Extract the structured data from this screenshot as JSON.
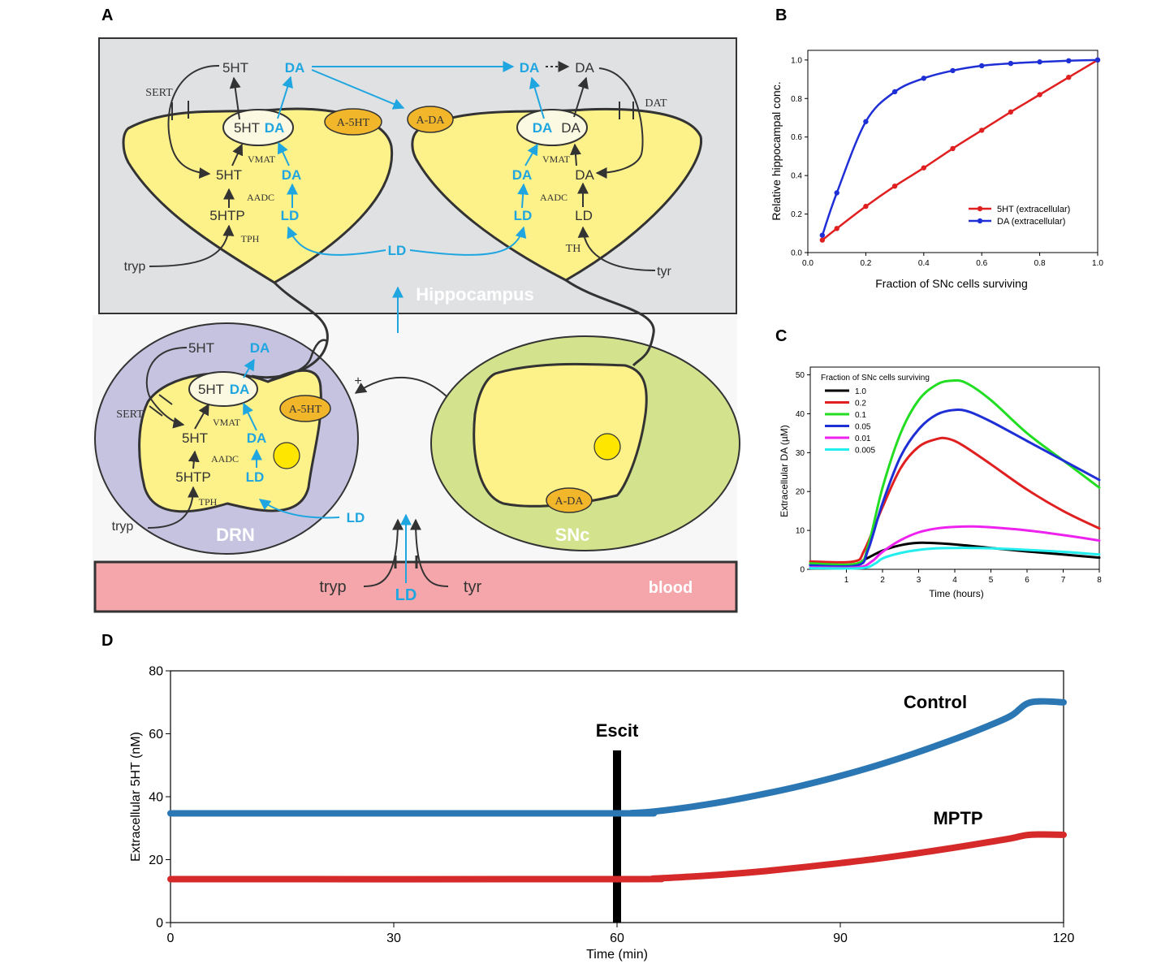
{
  "panels": {
    "a": {
      "letter": "A",
      "regions": {
        "hippocampus": "Hippocampus",
        "drn": "DRN",
        "snc": "SNc",
        "blood": "blood"
      },
      "hippo_left": {
        "top_5ht": "5HT",
        "top_da": "DA",
        "ves_5ht": "5HT",
        "ves_da": "DA",
        "vmat": "VMAT",
        "mid_5ht": "5HT",
        "mid_da": "DA",
        "aadc": "AADC",
        "htp": "5HTP",
        "ld": "LD",
        "tph": "TPH",
        "sert": "SERT",
        "a5ht": "A-5HT",
        "tryp": "tryp"
      },
      "hippo_right": {
        "top_da_blue": "DA",
        "top_da": "DA",
        "ves_da_blue": "DA",
        "ves_da": "DA",
        "vmat": "VMAT",
        "mid_da_blue": "DA",
        "mid_da": "DA",
        "aadc": "AADC",
        "ld_blue": "LD",
        "ld": "LD",
        "th": "TH",
        "dat": "DAT",
        "ada": "A-DA",
        "tyr": "tyr"
      },
      "hippo_ld": "LD",
      "drn": {
        "top_5ht": "5HT",
        "top_da": "DA",
        "ves_5ht": "5HT",
        "ves_da": "DA",
        "vmat": "VMAT",
        "mid_5ht": "5HT",
        "mid_da": "DA",
        "aadc": "AADC",
        "htp": "5HTP",
        "ld": "LD",
        "tph": "TPH",
        "sert": "SERT",
        "a5ht": "A-5HT",
        "tryp": "tryp",
        "ld_in": "LD",
        "plus": "+"
      },
      "snc": {
        "ada": "A-DA"
      },
      "blood": {
        "tryp": "tryp",
        "ld": "LD",
        "tyr": "tyr"
      }
    },
    "b": {
      "letter": "B"
    },
    "c": {
      "letter": "C"
    },
    "d": {
      "letter": "D"
    }
  },
  "colors": {
    "blue": "#1fa6e0",
    "dark": "#333333",
    "cell": "#fdf18a",
    "hippo_bg": "#e0e1e3",
    "drn_bg": "#c5c3e0",
    "snc_bg": "#d3e28d",
    "blood_bg": "#f4a6aa",
    "nucleus": "#ffe600",
    "enzyme": "#f2b62b",
    "red": "#e02020",
    "navy": "#1f2fd6",
    "green": "#22dd22",
    "magenta": "#ee22ee",
    "cyan": "#22eeee",
    "black": "#000000",
    "d_blue": "#2a77b4",
    "d_red": "#d62a2a"
  },
  "chart_data": [
    {
      "id": "B",
      "type": "line",
      "xlabel": "Fraction of SNc cells surviving",
      "ylabel": "Relative hippocampal conc.",
      "xlim": [
        0,
        1
      ],
      "ylim": [
        0,
        1.05
      ],
      "xticks": [
        "0.0",
        "0.2",
        "0.4",
        "0.6",
        "0.8",
        "1.0"
      ],
      "yticks": [
        "0.0",
        "0.2",
        "0.4",
        "0.6",
        "0.8",
        "1.0"
      ],
      "legend_position": "lower-right",
      "series": [
        {
          "name": "5HT (extracellular)",
          "color": "#e02020",
          "markers": true,
          "x": [
            0.05,
            0.1,
            0.2,
            0.3,
            0.4,
            0.5,
            0.6,
            0.7,
            0.8,
            0.9,
            1.0
          ],
          "y": [
            0.065,
            0.125,
            0.24,
            0.345,
            0.44,
            0.54,
            0.635,
            0.73,
            0.82,
            0.91,
            1.0
          ]
        },
        {
          "name": "DA (extracellular)",
          "color": "#1f2fd6",
          "markers": true,
          "x": [
            0.05,
            0.1,
            0.2,
            0.3,
            0.4,
            0.5,
            0.6,
            0.7,
            0.8,
            0.9,
            1.0
          ],
          "y": [
            0.09,
            0.31,
            0.68,
            0.835,
            0.905,
            0.945,
            0.97,
            0.982,
            0.99,
            0.996,
            1.0
          ]
        }
      ]
    },
    {
      "id": "C",
      "type": "line",
      "xlabel": "Time (hours)",
      "ylabel": "Extracellular DA (µM)",
      "xlim": [
        0,
        8
      ],
      "ylim": [
        0,
        52
      ],
      "xticks": [
        "1",
        "2",
        "3",
        "4",
        "5",
        "6",
        "7",
        "8"
      ],
      "yticks": [
        "0",
        "10",
        "20",
        "30",
        "40",
        "50"
      ],
      "legend_title": "Fraction of SNc cells surviving",
      "legend_position": "top-left",
      "series": [
        {
          "name": "1.0",
          "color": "#000000",
          "x": [
            0,
            1.2,
            1.5,
            2,
            2.5,
            3,
            3.5,
            4,
            5,
            6,
            7,
            8
          ],
          "y": [
            1.2,
            1.2,
            2.5,
            4.8,
            6.2,
            6.8,
            6.7,
            6.4,
            5.5,
            4.6,
            3.8,
            3.0
          ]
        },
        {
          "name": "0.2",
          "color": "#e02020",
          "x": [
            0,
            1.2,
            1.5,
            2,
            2.5,
            3,
            3.5,
            3.8,
            4.2,
            5,
            6,
            7,
            8
          ],
          "y": [
            2.0,
            2.0,
            5,
            16,
            26,
            31.5,
            33.5,
            33.6,
            32,
            27,
            20.5,
            15,
            10.5
          ]
        },
        {
          "name": "0.1",
          "color": "#22dd22",
          "x": [
            0,
            1.3,
            1.6,
            2,
            2.5,
            3,
            3.5,
            3.9,
            4.3,
            5,
            6,
            7,
            8
          ],
          "y": [
            1.5,
            1.5,
            6,
            21,
            35,
            43.5,
            47.5,
            48.5,
            48,
            43.5,
            35,
            28,
            21
          ]
        },
        {
          "name": "0.05",
          "color": "#1f2fd6",
          "x": [
            0,
            1.3,
            1.6,
            2,
            2.5,
            3,
            3.5,
            4,
            4.4,
            5,
            6,
            7,
            8
          ],
          "y": [
            1.0,
            1.0,
            5,
            17,
            29,
            36,
            39.8,
            41,
            40.5,
            38,
            33,
            28,
            23
          ]
        },
        {
          "name": "0.01",
          "color": "#ee22ee",
          "x": [
            0,
            1.3,
            1.7,
            2,
            2.5,
            3,
            3.5,
            4,
            4.5,
            5,
            6,
            7,
            8
          ],
          "y": [
            0.5,
            0.5,
            2,
            4.5,
            7.5,
            9.5,
            10.5,
            10.9,
            11,
            10.8,
            10,
            8.8,
            7.4
          ]
        },
        {
          "name": "0.005",
          "color": "#22eeee",
          "x": [
            0,
            1.4,
            1.8,
            2,
            2.5,
            3,
            3.5,
            4,
            4.5,
            5,
            6,
            7,
            8
          ],
          "y": [
            0.3,
            0.3,
            1.5,
            2.8,
            4.2,
            5.0,
            5.4,
            5.5,
            5.5,
            5.4,
            5.0,
            4.5,
            3.8
          ]
        }
      ]
    },
    {
      "id": "D",
      "type": "line",
      "xlabel": "Time (min)",
      "ylabel": "Extracellular 5HT (nM)",
      "xlim": [
        0,
        120
      ],
      "ylim": [
        0,
        80
      ],
      "xticks": [
        "0",
        "30",
        "60",
        "90",
        "120"
      ],
      "yticks": [
        "0",
        "20",
        "40",
        "60",
        "80"
      ],
      "annotations": [
        {
          "text": "Escit",
          "x": 60
        },
        {
          "text": "Control"
        },
        {
          "text": "MPTP"
        }
      ],
      "marker_x": 60,
      "series": [
        {
          "name": "Control",
          "color": "#2a77b4",
          "x": [
            0,
            60,
            62,
            65,
            70,
            75,
            80,
            85,
            90,
            95,
            100,
            105,
            110,
            113,
            115,
            117,
            120
          ],
          "y": [
            34.7,
            34.7,
            34.8,
            35.3,
            36.8,
            38.7,
            41.0,
            43.6,
            46.6,
            50.0,
            53.8,
            58.0,
            62.6,
            65.8,
            69.5,
            70.3,
            70.0
          ]
        },
        {
          "name": "MPTP",
          "color": "#d62a2a",
          "x": [
            0,
            60,
            65,
            70,
            75,
            80,
            85,
            90,
            95,
            100,
            105,
            110,
            113,
            115,
            117,
            120
          ],
          "y": [
            13.8,
            13.8,
            14.0,
            14.6,
            15.4,
            16.4,
            17.6,
            18.9,
            20.3,
            21.9,
            23.7,
            25.6,
            26.8,
            27.8,
            28.0,
            27.9
          ]
        }
      ]
    }
  ]
}
